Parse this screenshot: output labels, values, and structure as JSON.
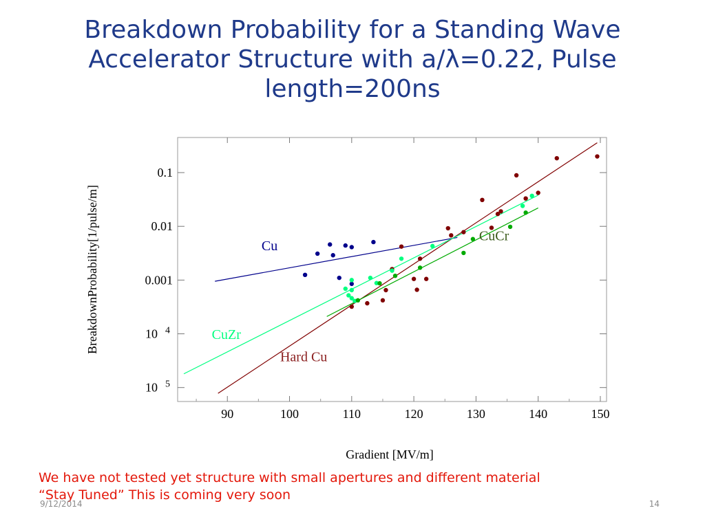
{
  "slide": {
    "title_lines": [
      "Breakdown Probability for a Standing Wave",
      "Accelerator Structure with a/λ=0.22, Pulse",
      "length=200ns"
    ],
    "note_lines": [
      "We have not tested yet structure with small apertures and different material",
      "“Stay Tuned” This is coming very soon"
    ],
    "footer_date": "9/12/2014",
    "page_number": "14"
  },
  "chart_data": {
    "type": "scatter",
    "xlabel": "Gradient [MV/m]",
    "ylabel": "BreakdownProbability[1/pulse/m]",
    "xlim": [
      82,
      151
    ],
    "ylim": [
      5.5e-06,
      0.45
    ],
    "yscale": "log",
    "x_ticks": [
      90,
      100,
      110,
      120,
      130,
      140,
      150
    ],
    "y_ticks": [
      {
        "value": 0.1,
        "label": "0.1"
      },
      {
        "value": 0.01,
        "label": "0.01"
      },
      {
        "value": 0.001,
        "label": "0.001"
      },
      {
        "value": 0.0001,
        "label": "10",
        "exp": "4"
      },
      {
        "value": 1e-05,
        "label": "10",
        "exp": "5"
      }
    ],
    "frame": true,
    "series": [
      {
        "name": "Cu",
        "color": "#00008b",
        "label_at": [
          95.5,
          0.0036
        ],
        "fit": [
          [
            88,
            0.00095
          ],
          [
            127,
            0.0062
          ]
        ],
        "points": [
          [
            102.5,
            0.00125
          ],
          [
            104.5,
            0.0031
          ],
          [
            106.5,
            0.0046
          ],
          [
            107,
            0.0029
          ],
          [
            108,
            0.0011
          ],
          [
            109,
            0.0044
          ],
          [
            110,
            0.0041
          ],
          [
            110,
            0.00085
          ],
          [
            113.5,
            0.0051
          ]
        ]
      },
      {
        "name": "Hard Cu",
        "color": "#800000",
        "label_at": [
          98.5,
          3.1e-05
        ],
        "fit": [
          [
            88.5,
            7.8e-06
          ],
          [
            149.5,
            0.36
          ]
        ],
        "points": [
          [
            110,
            0.00032
          ],
          [
            112.5,
            0.00037
          ],
          [
            115,
            0.00042
          ],
          [
            115.5,
            0.00065
          ],
          [
            116.5,
            0.0016
          ],
          [
            118,
            0.0042
          ],
          [
            120,
            0.00105
          ],
          [
            120.5,
            0.00066
          ],
          [
            121,
            0.0025
          ],
          [
            122,
            0.00105
          ],
          [
            125.5,
            0.0092
          ],
          [
            126,
            0.0068
          ],
          [
            128,
            0.0078
          ],
          [
            131,
            0.031
          ],
          [
            132.5,
            0.0094
          ],
          [
            133.5,
            0.017
          ],
          [
            134,
            0.019
          ],
          [
            136.5,
            0.089
          ],
          [
            138,
            0.033
          ],
          [
            140,
            0.042
          ],
          [
            143,
            0.185
          ],
          [
            149.5,
            0.2
          ]
        ]
      },
      {
        "name": "CuZr",
        "color": "#00ff80",
        "label_at": [
          87.5,
          8e-05
        ],
        "fit": [
          [
            83,
            1.8e-05
          ],
          [
            140,
            0.038
          ]
        ],
        "points": [
          [
            109,
            0.00069
          ],
          [
            109.5,
            0.00052
          ],
          [
            110,
            0.00046
          ],
          [
            110,
            0.00065
          ],
          [
            110,
            0.001
          ],
          [
            110.5,
            0.00041
          ],
          [
            113,
            0.0011
          ],
          [
            114,
            0.00088
          ],
          [
            116.5,
            0.0015
          ],
          [
            118,
            0.0025
          ],
          [
            123,
            0.0043
          ],
          [
            137.5,
            0.024
          ],
          [
            139,
            0.037
          ]
        ]
      },
      {
        "name": "CuCr",
        "color": "#00aa00",
        "label_at": [
          130.5,
          0.0055
        ],
        "fit": [
          [
            106,
            0.00021
          ],
          [
            140,
            0.022
          ]
        ],
        "points": [
          [
            111,
            0.00042
          ],
          [
            114.5,
            0.00087
          ],
          [
            117,
            0.0012
          ],
          [
            121,
            0.0017
          ],
          [
            128,
            0.0032
          ],
          [
            129.5,
            0.0058
          ],
          [
            135.5,
            0.0098
          ],
          [
            138,
            0.018
          ]
        ]
      }
    ]
  }
}
